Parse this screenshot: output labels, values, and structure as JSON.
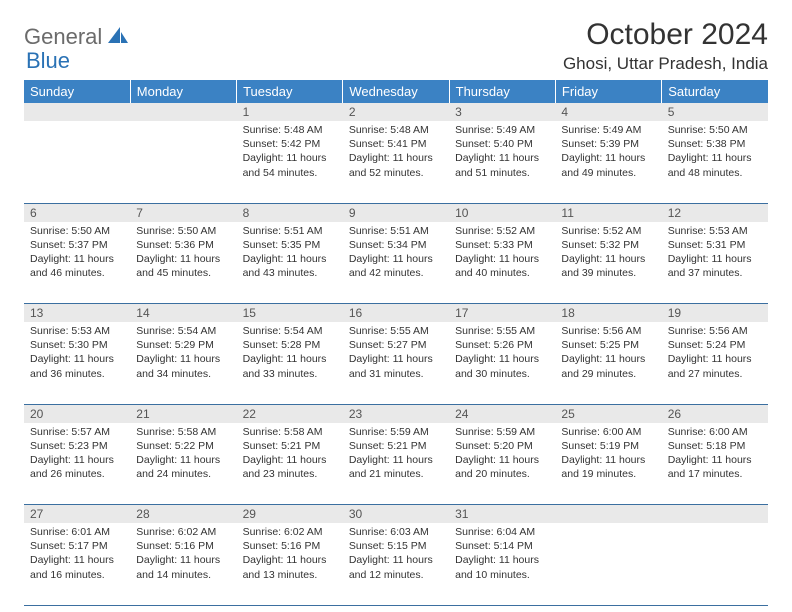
{
  "brand": {
    "part1": "General",
    "part2": "Blue"
  },
  "title": "October 2024",
  "location": "Ghosi, Uttar Pradesh, India",
  "colors": {
    "header_bg": "#3b82c4",
    "header_text": "#ffffff",
    "daynum_bg": "#e9e9e9",
    "row_border": "#3b6fa0",
    "brand_gray": "#6b6b6b",
    "brand_blue": "#2a72b5"
  },
  "weekdays": [
    "Sunday",
    "Monday",
    "Tuesday",
    "Wednesday",
    "Thursday",
    "Friday",
    "Saturday"
  ],
  "weeks": [
    {
      "nums": [
        "",
        "",
        "1",
        "2",
        "3",
        "4",
        "5"
      ],
      "cells": [
        null,
        null,
        {
          "sunrise": "Sunrise: 5:48 AM",
          "sunset": "Sunset: 5:42 PM",
          "daylight": "Daylight: 11 hours and 54 minutes."
        },
        {
          "sunrise": "Sunrise: 5:48 AM",
          "sunset": "Sunset: 5:41 PM",
          "daylight": "Daylight: 11 hours and 52 minutes."
        },
        {
          "sunrise": "Sunrise: 5:49 AM",
          "sunset": "Sunset: 5:40 PM",
          "daylight": "Daylight: 11 hours and 51 minutes."
        },
        {
          "sunrise": "Sunrise: 5:49 AM",
          "sunset": "Sunset: 5:39 PM",
          "daylight": "Daylight: 11 hours and 49 minutes."
        },
        {
          "sunrise": "Sunrise: 5:50 AM",
          "sunset": "Sunset: 5:38 PM",
          "daylight": "Daylight: 11 hours and 48 minutes."
        }
      ]
    },
    {
      "nums": [
        "6",
        "7",
        "8",
        "9",
        "10",
        "11",
        "12"
      ],
      "cells": [
        {
          "sunrise": "Sunrise: 5:50 AM",
          "sunset": "Sunset: 5:37 PM",
          "daylight": "Daylight: 11 hours and 46 minutes."
        },
        {
          "sunrise": "Sunrise: 5:50 AM",
          "sunset": "Sunset: 5:36 PM",
          "daylight": "Daylight: 11 hours and 45 minutes."
        },
        {
          "sunrise": "Sunrise: 5:51 AM",
          "sunset": "Sunset: 5:35 PM",
          "daylight": "Daylight: 11 hours and 43 minutes."
        },
        {
          "sunrise": "Sunrise: 5:51 AM",
          "sunset": "Sunset: 5:34 PM",
          "daylight": "Daylight: 11 hours and 42 minutes."
        },
        {
          "sunrise": "Sunrise: 5:52 AM",
          "sunset": "Sunset: 5:33 PM",
          "daylight": "Daylight: 11 hours and 40 minutes."
        },
        {
          "sunrise": "Sunrise: 5:52 AM",
          "sunset": "Sunset: 5:32 PM",
          "daylight": "Daylight: 11 hours and 39 minutes."
        },
        {
          "sunrise": "Sunrise: 5:53 AM",
          "sunset": "Sunset: 5:31 PM",
          "daylight": "Daylight: 11 hours and 37 minutes."
        }
      ]
    },
    {
      "nums": [
        "13",
        "14",
        "15",
        "16",
        "17",
        "18",
        "19"
      ],
      "cells": [
        {
          "sunrise": "Sunrise: 5:53 AM",
          "sunset": "Sunset: 5:30 PM",
          "daylight": "Daylight: 11 hours and 36 minutes."
        },
        {
          "sunrise": "Sunrise: 5:54 AM",
          "sunset": "Sunset: 5:29 PM",
          "daylight": "Daylight: 11 hours and 34 minutes."
        },
        {
          "sunrise": "Sunrise: 5:54 AM",
          "sunset": "Sunset: 5:28 PM",
          "daylight": "Daylight: 11 hours and 33 minutes."
        },
        {
          "sunrise": "Sunrise: 5:55 AM",
          "sunset": "Sunset: 5:27 PM",
          "daylight": "Daylight: 11 hours and 31 minutes."
        },
        {
          "sunrise": "Sunrise: 5:55 AM",
          "sunset": "Sunset: 5:26 PM",
          "daylight": "Daylight: 11 hours and 30 minutes."
        },
        {
          "sunrise": "Sunrise: 5:56 AM",
          "sunset": "Sunset: 5:25 PM",
          "daylight": "Daylight: 11 hours and 29 minutes."
        },
        {
          "sunrise": "Sunrise: 5:56 AM",
          "sunset": "Sunset: 5:24 PM",
          "daylight": "Daylight: 11 hours and 27 minutes."
        }
      ]
    },
    {
      "nums": [
        "20",
        "21",
        "22",
        "23",
        "24",
        "25",
        "26"
      ],
      "cells": [
        {
          "sunrise": "Sunrise: 5:57 AM",
          "sunset": "Sunset: 5:23 PM",
          "daylight": "Daylight: 11 hours and 26 minutes."
        },
        {
          "sunrise": "Sunrise: 5:58 AM",
          "sunset": "Sunset: 5:22 PM",
          "daylight": "Daylight: 11 hours and 24 minutes."
        },
        {
          "sunrise": "Sunrise: 5:58 AM",
          "sunset": "Sunset: 5:21 PM",
          "daylight": "Daylight: 11 hours and 23 minutes."
        },
        {
          "sunrise": "Sunrise: 5:59 AM",
          "sunset": "Sunset: 5:21 PM",
          "daylight": "Daylight: 11 hours and 21 minutes."
        },
        {
          "sunrise": "Sunrise: 5:59 AM",
          "sunset": "Sunset: 5:20 PM",
          "daylight": "Daylight: 11 hours and 20 minutes."
        },
        {
          "sunrise": "Sunrise: 6:00 AM",
          "sunset": "Sunset: 5:19 PM",
          "daylight": "Daylight: 11 hours and 19 minutes."
        },
        {
          "sunrise": "Sunrise: 6:00 AM",
          "sunset": "Sunset: 5:18 PM",
          "daylight": "Daylight: 11 hours and 17 minutes."
        }
      ]
    },
    {
      "nums": [
        "27",
        "28",
        "29",
        "30",
        "31",
        "",
        ""
      ],
      "cells": [
        {
          "sunrise": "Sunrise: 6:01 AM",
          "sunset": "Sunset: 5:17 PM",
          "daylight": "Daylight: 11 hours and 16 minutes."
        },
        {
          "sunrise": "Sunrise: 6:02 AM",
          "sunset": "Sunset: 5:16 PM",
          "daylight": "Daylight: 11 hours and 14 minutes."
        },
        {
          "sunrise": "Sunrise: 6:02 AM",
          "sunset": "Sunset: 5:16 PM",
          "daylight": "Daylight: 11 hours and 13 minutes."
        },
        {
          "sunrise": "Sunrise: 6:03 AM",
          "sunset": "Sunset: 5:15 PM",
          "daylight": "Daylight: 11 hours and 12 minutes."
        },
        {
          "sunrise": "Sunrise: 6:04 AM",
          "sunset": "Sunset: 5:14 PM",
          "daylight": "Daylight: 11 hours and 10 minutes."
        },
        null,
        null
      ]
    }
  ]
}
